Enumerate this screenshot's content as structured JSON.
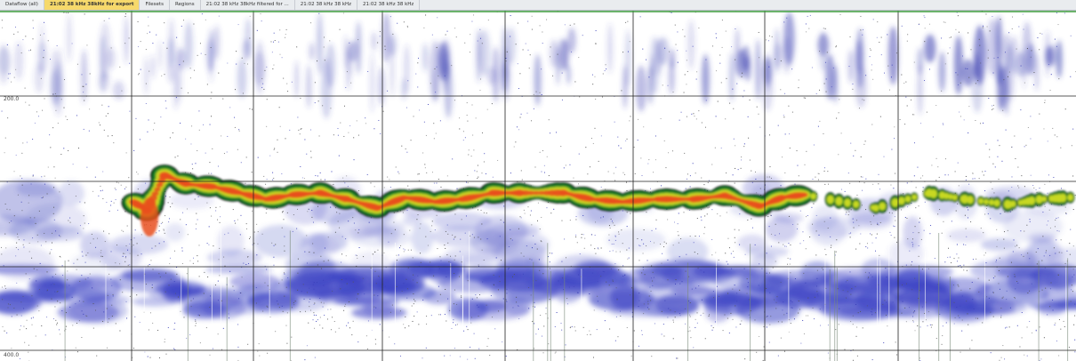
{
  "tabs": [
    "Dataflow (all)",
    "21:02 38 kHz 38kHz for export",
    "Filesets",
    "Regions",
    "21:02 38 kHz 38kHz filtered for ...",
    "21:02 38 kHz 38 kHz",
    "21:02 38 kHz 38 kHz"
  ],
  "echogram": {
    "depth_labels": [
      "200.0",
      "400.0"
    ]
  }
}
